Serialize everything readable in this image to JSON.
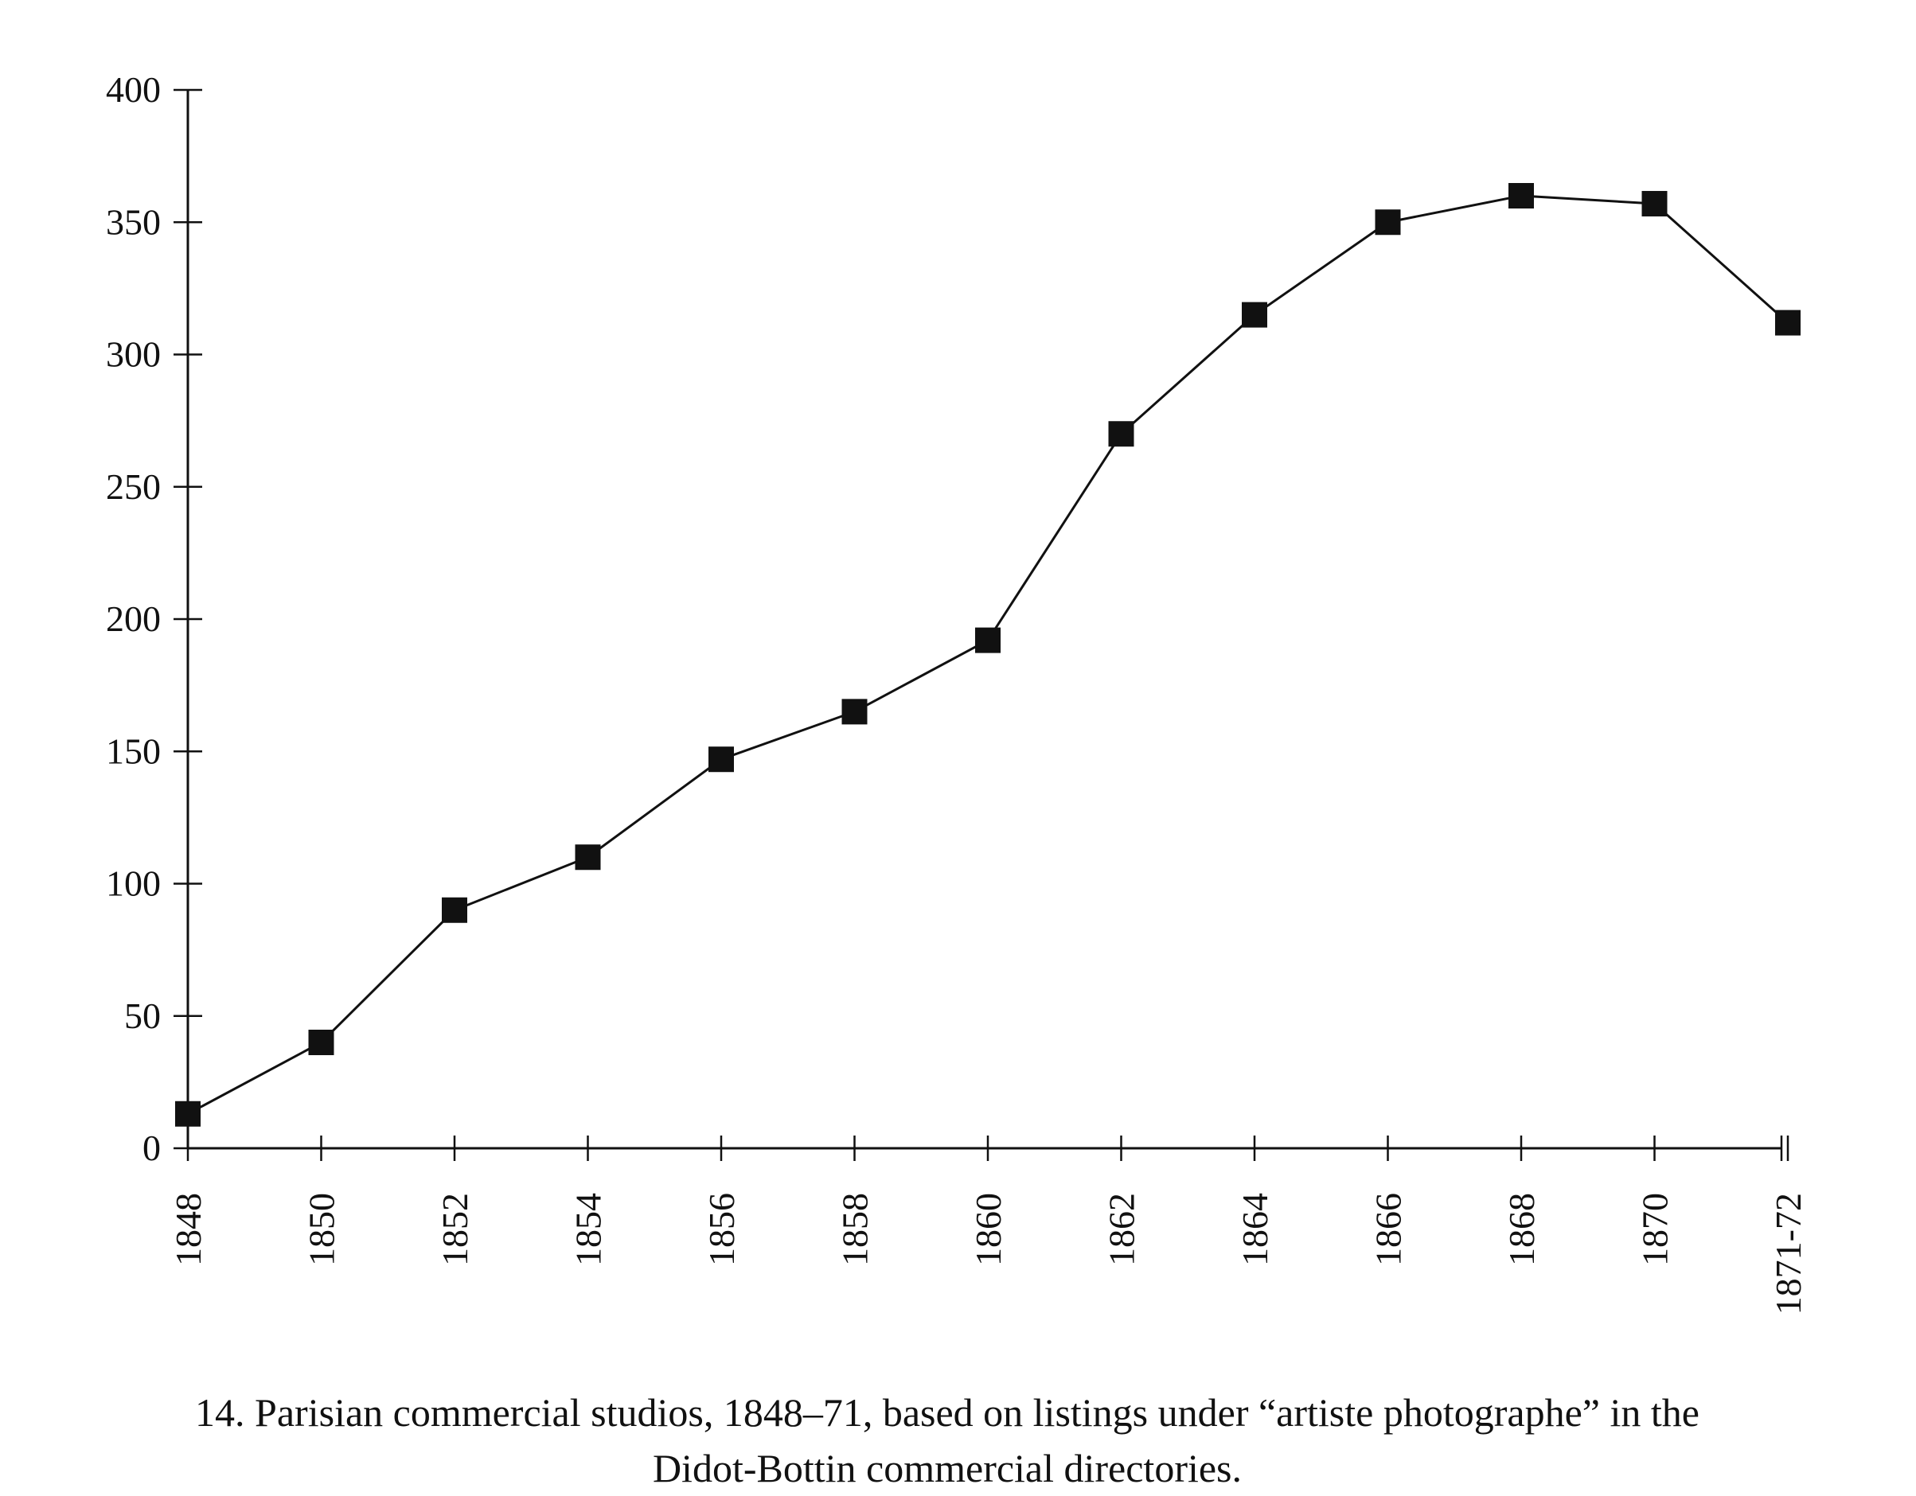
{
  "chart_data": {
    "type": "line",
    "categories": [
      "1848",
      "1850",
      "1852",
      "1854",
      "1856",
      "1858",
      "1860",
      "1862",
      "1864",
      "1866",
      "1868",
      "1870",
      "1871-72"
    ],
    "series": [
      {
        "values": [
          13,
          40,
          90,
          110,
          147,
          165,
          192,
          270,
          315,
          350,
          360,
          357,
          312
        ]
      }
    ],
    "y_ticks": [
      0,
      50,
      100,
      150,
      200,
      250,
      300,
      350,
      400
    ],
    "ylim": [
      0,
      400
    ],
    "title": "",
    "xlabel": "",
    "ylabel": "",
    "grid": false,
    "legend": "none",
    "marker": "square",
    "line_color": "#111111"
  },
  "caption": {
    "line1": "14. Parisian commercial studios, 1848–71, based on listings under “artiste photographe” in the",
    "line2": "Didot-Bottin commercial directories."
  }
}
